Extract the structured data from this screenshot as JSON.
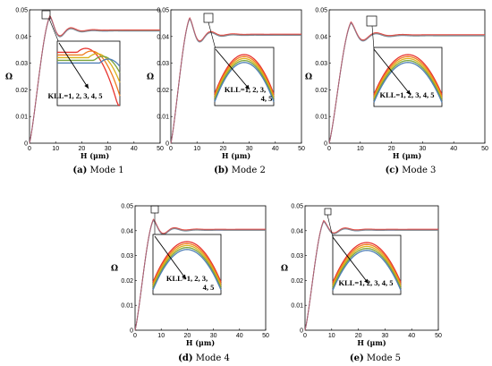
{
  "chart_data": [
    {
      "type": "line",
      "caption_label": "(a)",
      "caption_text": "Mode 1",
      "xlabel": "H (μm)",
      "ylabel": "Ω",
      "xlim": [
        0,
        50
      ],
      "ylim": [
        0,
        0.05
      ],
      "x_ticks": [
        0,
        10,
        20,
        30,
        40,
        50
      ],
      "y_ticks": [
        0,
        0.01,
        0.02,
        0.03,
        0.04,
        0.05
      ],
      "peak": {
        "x": 7.8,
        "y": 0.0475
      },
      "plateau": 0.0422,
      "annotation": "KLL=1, 2, 3, 4, 5",
      "series_colors": [
        "#e8342f",
        "#f07c1e",
        "#d9b21a",
        "#7aa43a",
        "#4f7fb5"
      ]
    },
    {
      "type": "line",
      "caption_label": "(b)",
      "caption_text": "Mode 2",
      "xlabel": "H (μm)",
      "ylabel": "Ω",
      "xlim": [
        0,
        50
      ],
      "ylim": [
        0,
        0.05
      ],
      "x_ticks": [
        0,
        10,
        20,
        30,
        40,
        50
      ],
      "y_ticks": [
        0,
        0.01,
        0.02,
        0.03,
        0.04,
        0.05
      ],
      "peak": {
        "x": 7.2,
        "y": 0.0468
      },
      "plateau": 0.0406,
      "annotation_lines": [
        "KLL=1, 2, 3,",
        "4, 5"
      ],
      "series_colors": [
        "#e8342f",
        "#f07c1e",
        "#d9b21a",
        "#7aa43a",
        "#4f7fb5"
      ]
    },
    {
      "type": "line",
      "caption_label": "(c)",
      "caption_text": "Mode 3",
      "xlabel": "H (μm)",
      "ylabel": "Ω",
      "xlim": [
        0,
        50
      ],
      "ylim": [
        0,
        0.05
      ],
      "x_ticks": [
        0,
        10,
        20,
        30,
        40,
        50
      ],
      "y_ticks": [
        0,
        0.01,
        0.02,
        0.03,
        0.04,
        0.05
      ],
      "peak": {
        "x": 7.0,
        "y": 0.0452
      },
      "plateau": 0.0404,
      "annotation": "KLL=1, 2, 3, 4, 5",
      "series_colors": [
        "#e8342f",
        "#f07c1e",
        "#d9b21a",
        "#7aa43a",
        "#4f7fb5"
      ]
    },
    {
      "type": "line",
      "caption_label": "(d)",
      "caption_text": "Mode 4",
      "xlabel": "H (μm)",
      "ylabel": "Ω",
      "xlim": [
        0,
        50
      ],
      "ylim": [
        0,
        0.05
      ],
      "x_ticks": [
        0,
        10,
        20,
        30,
        40,
        50
      ],
      "y_ticks": [
        0,
        0.01,
        0.02,
        0.03,
        0.04,
        0.05
      ],
      "peak": {
        "x": 7.0,
        "y": 0.0443
      },
      "plateau": 0.0403,
      "annotation_lines": [
        "KLL=1, 2, 3,",
        "4, 5"
      ],
      "series_colors": [
        "#e8342f",
        "#f07c1e",
        "#d9b21a",
        "#7aa43a",
        "#4f7fb5"
      ]
    },
    {
      "type": "line",
      "caption_label": "(e)",
      "caption_text": "Mode 5",
      "xlabel": "H (μm)",
      "ylabel": "Ω",
      "xlim": [
        0,
        50
      ],
      "ylim": [
        0,
        0.05
      ],
      "x_ticks": [
        0,
        10,
        20,
        30,
        40,
        50
      ],
      "y_ticks": [
        0,
        0.01,
        0.02,
        0.03,
        0.04,
        0.05
      ],
      "peak": {
        "x": 7.0,
        "y": 0.0438
      },
      "plateau": 0.0403,
      "annotation": "KLL=1, 2, 3, 4, 5",
      "series_colors": [
        "#e8342f",
        "#f07c1e",
        "#d9b21a",
        "#7aa43a",
        "#4f7fb5"
      ]
    }
  ]
}
